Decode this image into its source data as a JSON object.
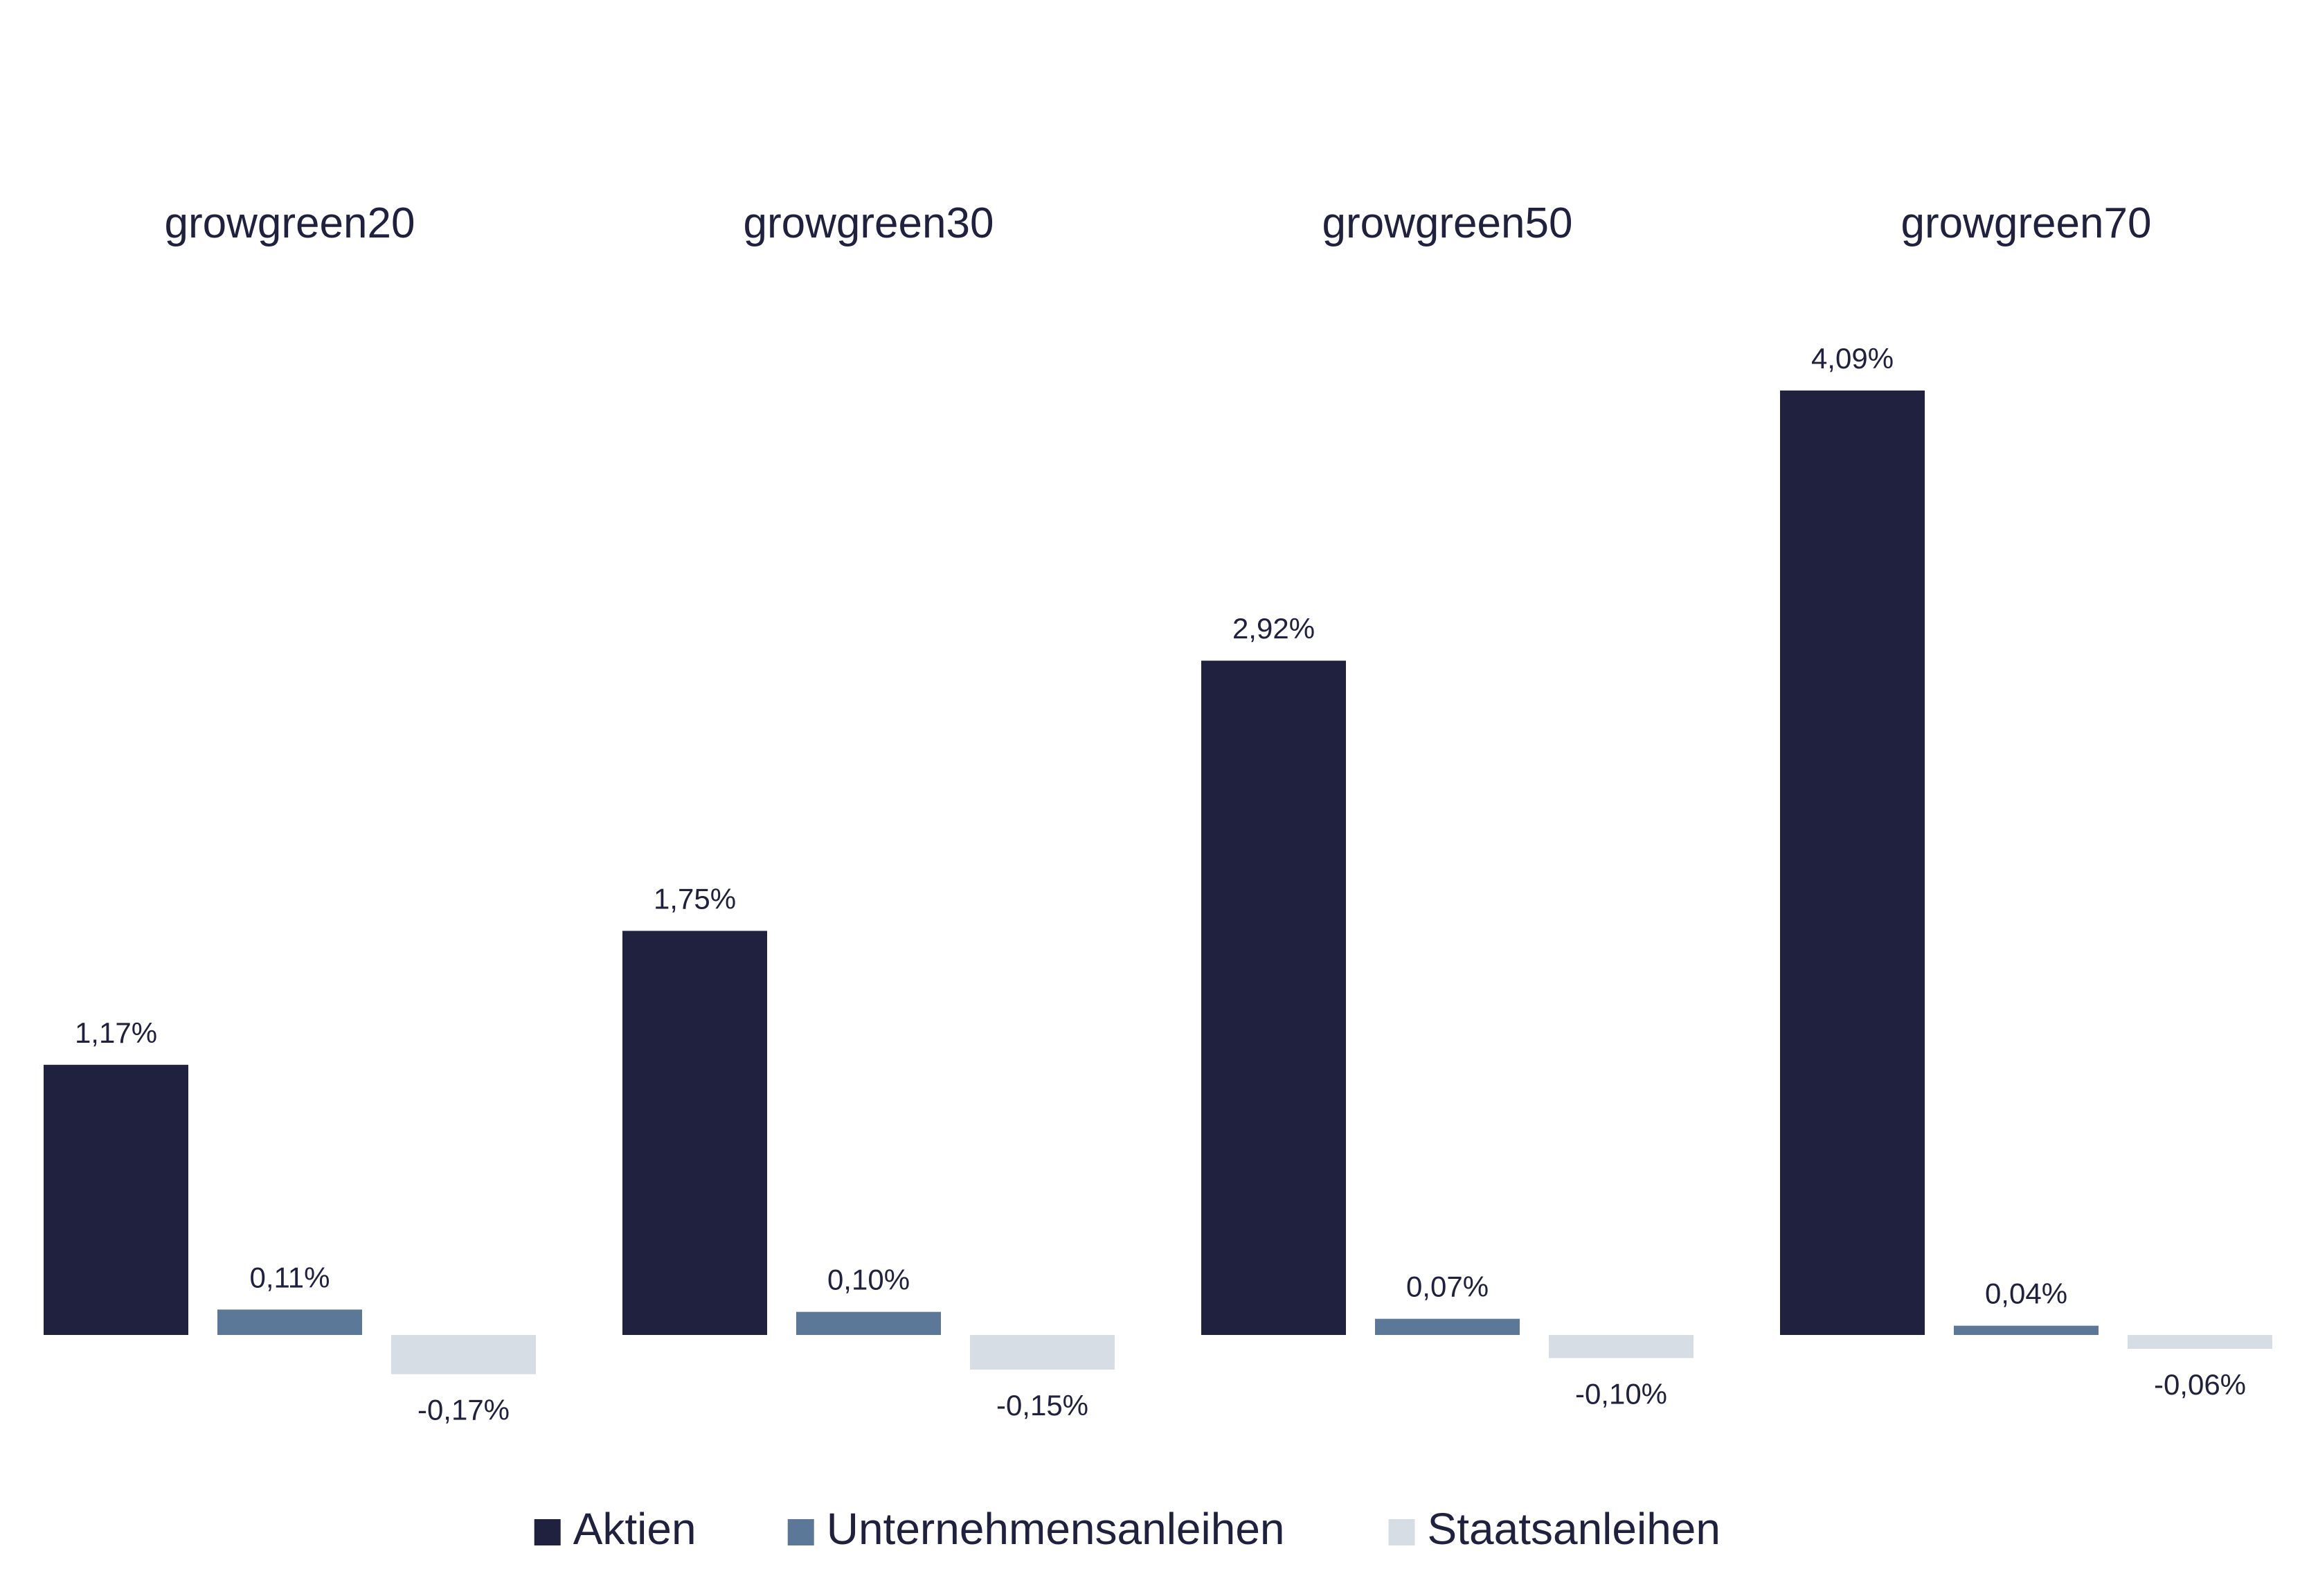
{
  "chart_data": {
    "type": "bar",
    "categories": [
      "growgreen20",
      "growgreen30",
      "growgreen50",
      "growgreen70"
    ],
    "series": [
      {
        "name": "Aktien",
        "color": "#20213e",
        "values": [
          1.17,
          1.75,
          2.92,
          4.09
        ],
        "labels": [
          "1,17%",
          "1,75%",
          "2,92%",
          "4,09%"
        ]
      },
      {
        "name": "Unternehmensanleihen",
        "color": "#5b7898",
        "values": [
          0.11,
          0.1,
          0.07,
          0.04
        ],
        "labels": [
          "0,11%",
          "0,10%",
          "0,07%",
          "0,04%"
        ]
      },
      {
        "name": "Staatsanleihen",
        "color": "#d6dde4",
        "values": [
          -0.17,
          -0.15,
          -0.1,
          -0.06
        ],
        "labels": [
          "-0,17%",
          "-0,15%",
          "-0,10%",
          "-0,06%"
        ]
      }
    ],
    "grid": false,
    "axes_visible": false,
    "legend_position": "bottom-center"
  }
}
